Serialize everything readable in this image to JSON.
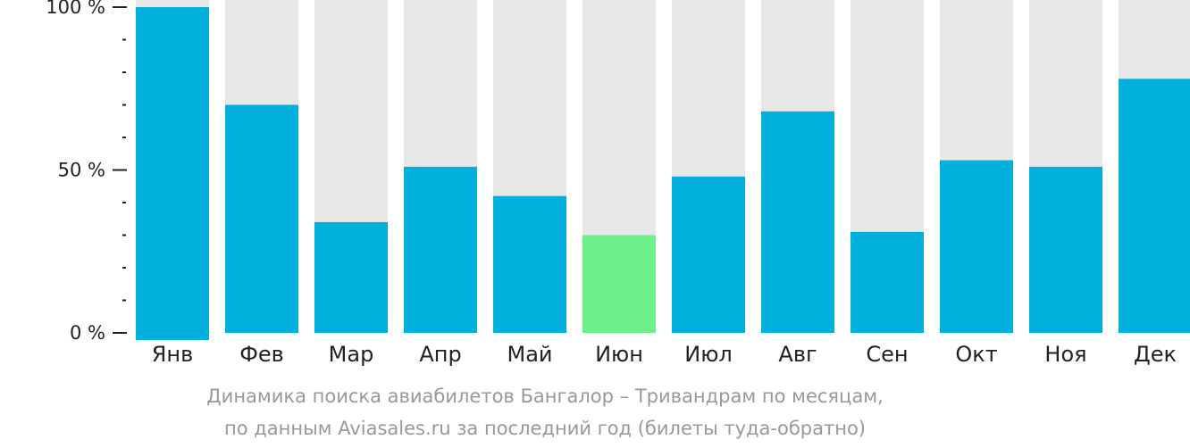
{
  "chart_data": {
    "type": "bar",
    "categories": [
      "Янв",
      "Фев",
      "Мар",
      "Апр",
      "Май",
      "Июн",
      "Июл",
      "Авг",
      "Сен",
      "Окт",
      "Ноя",
      "Дек"
    ],
    "values": [
      100,
      70,
      34,
      51,
      42,
      30,
      48,
      68,
      31,
      53,
      51,
      78
    ],
    "ylim": [
      0,
      100
    ],
    "yticks": [
      {
        "value": 0,
        "label": "0 %"
      },
      {
        "value": 50,
        "label": "50 %"
      },
      {
        "value": 100,
        "label": "100 %"
      }
    ],
    "minor_tick_step": 10,
    "highlight_index": 5,
    "colors": {
      "bar": "#00b0dc",
      "highlight": "#6df08a",
      "background_bar": "#e8e8e8",
      "axis": "#222222"
    }
  },
  "caption": {
    "line1": "Динамика поиска авиабилетов Бангалор – Тривандрам по месяцам,",
    "line2": "по данным Aviasales.ru за последний год (билеты туда-обратно)"
  }
}
